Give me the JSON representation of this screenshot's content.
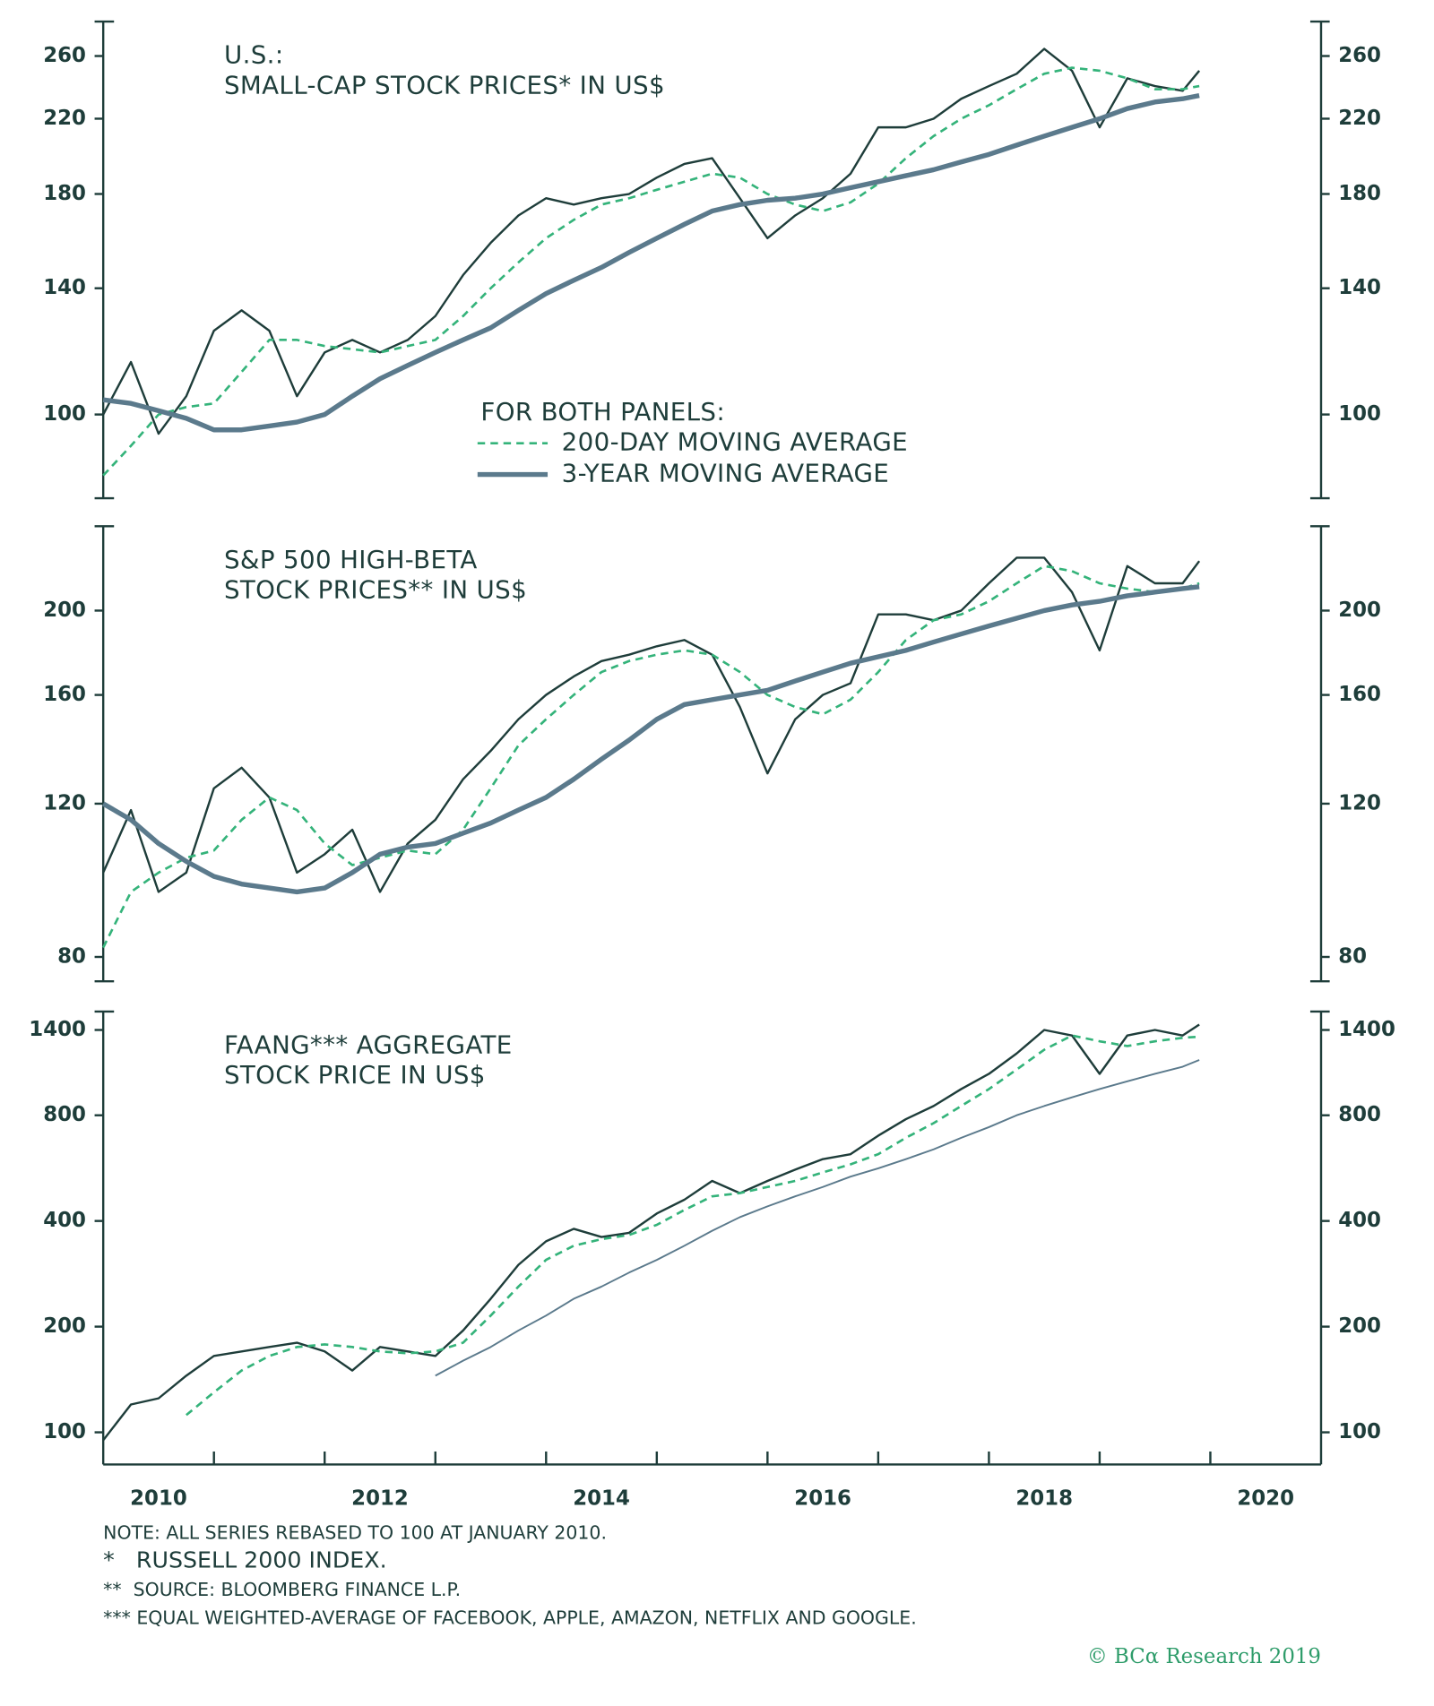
{
  "chart_data": [
    {
      "type": "line",
      "title": [
        "U.S.:",
        "SMALL-CAP STOCK PRICES* IN US$"
      ],
      "ylog": true,
      "ylim": [
        80,
        285
      ],
      "yticks": [
        100,
        140,
        180,
        220,
        260
      ],
      "legend_title": "FOR BOTH PANELS:",
      "x": [
        2010,
        2010.25,
        2010.5,
        2010.75,
        2011,
        2011.25,
        2011.5,
        2011.75,
        2012,
        2012.25,
        2012.5,
        2012.75,
        2013,
        2013.25,
        2013.5,
        2013.75,
        2014,
        2014.25,
        2014.5,
        2014.75,
        2015,
        2015.25,
        2015.5,
        2015.75,
        2016,
        2016.25,
        2016.5,
        2016.75,
        2017,
        2017.25,
        2017.5,
        2017.75,
        2018,
        2018.25,
        2018.5,
        2018.75,
        2019,
        2019.25,
        2019.5,
        2019.75,
        2019.9
      ],
      "series": [
        {
          "color": "#1e3d3a",
          "values": [
            100,
            115,
            95,
            105,
            125,
            132,
            125,
            105,
            118,
            122,
            118,
            122,
            130,
            145,
            158,
            170,
            178,
            175,
            178,
            180,
            188,
            195,
            198,
            178,
            160,
            170,
            178,
            190,
            215,
            215,
            220,
            232,
            240,
            248,
            265,
            250,
            215,
            245,
            240,
            237,
            250
          ]
        },
        {
          "name": "200-DAY MOVING AVERAGE",
          "color": "#34b37a",
          "values": [
            85,
            92,
            100,
            102,
            103,
            112,
            122,
            122,
            120,
            119,
            118,
            120,
            122,
            130,
            140,
            150,
            160,
            168,
            175,
            178,
            182,
            186,
            190,
            188,
            180,
            175,
            172,
            176,
            185,
            198,
            210,
            220,
            228,
            238,
            248,
            252,
            250,
            245,
            238,
            238,
            240
          ]
        },
        {
          "name": "3-YEAR MOVING AVERAGE",
          "color": "#5b7a8c",
          "values": [
            104,
            103,
            101,
            99,
            96,
            96,
            97,
            98,
            100,
            105,
            110,
            114,
            118,
            122,
            126,
            132,
            138,
            143,
            148,
            154,
            160,
            166,
            172,
            175,
            177,
            178,
            180,
            183,
            186,
            189,
            192,
            196,
            200,
            205,
            210,
            215,
            220,
            226,
            230,
            232,
            234
          ]
        }
      ]
    },
    {
      "type": "line",
      "title": [
        "S&P 500 HIGH-BETA",
        "STOCK PRICES** IN US$"
      ],
      "ylog": true,
      "ylim": [
        75,
        250
      ],
      "yticks": [
        80,
        120,
        160,
        200
      ],
      "x": [
        2010,
        2010.25,
        2010.5,
        2010.75,
        2011,
        2011.25,
        2011.5,
        2011.75,
        2012,
        2012.25,
        2012.5,
        2012.75,
        2013,
        2013.25,
        2013.5,
        2013.75,
        2014,
        2014.25,
        2014.5,
        2014.75,
        2015,
        2015.25,
        2015.5,
        2015.75,
        2016,
        2016.25,
        2016.5,
        2016.75,
        2017,
        2017.25,
        2017.5,
        2017.75,
        2018,
        2018.25,
        2018.5,
        2018.75,
        2019,
        2019.25,
        2019.5,
        2019.75,
        2019.9
      ],
      "series": [
        {
          "color": "#1e3d3a",
          "values": [
            100,
            118,
            95,
            100,
            125,
            132,
            122,
            100,
            105,
            112,
            95,
            108,
            115,
            128,
            138,
            150,
            160,
            168,
            175,
            178,
            182,
            185,
            178,
            155,
            130,
            150,
            160,
            165,
            198,
            198,
            195,
            200,
            215,
            230,
            230,
            210,
            180,
            225,
            215,
            215,
            228
          ]
        },
        {
          "color": "#34b37a",
          "values": [
            82,
            95,
            100,
            104,
            106,
            115,
            122,
            118,
            108,
            102,
            104,
            106,
            105,
            112,
            125,
            140,
            150,
            160,
            170,
            175,
            178,
            180,
            178,
            170,
            160,
            155,
            152,
            158,
            170,
            185,
            195,
            198,
            205,
            215,
            225,
            222,
            215,
            212,
            210,
            212,
            215
          ]
        },
        {
          "color": "#5b7a8c",
          "values": [
            120,
            115,
            108,
            103,
            99,
            97,
            96,
            95,
            96,
            100,
            105,
            107,
            108,
            111,
            114,
            118,
            122,
            128,
            135,
            142,
            150,
            156,
            158,
            160,
            162,
            166,
            170,
            174,
            177,
            180,
            184,
            188,
            192,
            196,
            200,
            203,
            205,
            208,
            210,
            212,
            213
          ]
        }
      ]
    },
    {
      "type": "line",
      "title": [
        "FAANG*** AGGREGATE",
        "STOCK PRICE IN US$"
      ],
      "ylog": true,
      "ylim": [
        81,
        1580
      ],
      "yticks": [
        100,
        200,
        400,
        800,
        1400
      ],
      "x": [
        2010,
        2010.25,
        2010.5,
        2010.75,
        2011,
        2011.25,
        2011.5,
        2011.75,
        2012,
        2012.25,
        2012.5,
        2012.75,
        2013,
        2013.25,
        2013.5,
        2013.75,
        2014,
        2014.25,
        2014.5,
        2014.75,
        2015,
        2015.25,
        2015.5,
        2015.75,
        2016,
        2016.25,
        2016.5,
        2016.75,
        2017,
        2017.25,
        2017.5,
        2017.75,
        2018,
        2018.25,
        2018.5,
        2018.75,
        2019,
        2019.25,
        2019.5,
        2019.75,
        2019.9
      ],
      "xlim": [
        2010,
        2021
      ],
      "xticks": [
        {
          "value": 2010.5,
          "label": "2010"
        },
        {
          "value": 2012.5,
          "label": "2012"
        },
        {
          "value": 2014.5,
          "label": "2014"
        },
        {
          "value": 2016.5,
          "label": "2016"
        },
        {
          "value": 2018.5,
          "label": "2018"
        },
        {
          "value": 2020.5,
          "label": "2020"
        }
      ],
      "x_tick_marks": [
        2011,
        2012,
        2013,
        2014,
        2015,
        2016,
        2017,
        2018,
        2019,
        2020
      ],
      "series": [
        {
          "color": "#1e3d3a",
          "values": [
            95,
            120,
            125,
            145,
            165,
            170,
            175,
            180,
            170,
            150,
            175,
            170,
            165,
            195,
            240,
            300,
            350,
            380,
            360,
            370,
            420,
            460,
            520,
            480,
            520,
            560,
            600,
            620,
            700,
            780,
            850,
            950,
            1050,
            1200,
            1400,
            1350,
            1050,
            1350,
            1400,
            1350,
            1450
          ]
        },
        {
          "color": "#34b37a",
          "values": [
            null,
            null,
            null,
            112,
            130,
            150,
            165,
            175,
            178,
            175,
            170,
            168,
            170,
            180,
            215,
            260,
            310,
            340,
            355,
            365,
            390,
            430,
            470,
            480,
            500,
            520,
            550,
            580,
            620,
            690,
            760,
            850,
            950,
            1080,
            1230,
            1350,
            1300,
            1260,
            1300,
            1330,
            1340
          ]
        },
        {
          "color": "#5b7a8c",
          "values": [
            null,
            null,
            null,
            null,
            null,
            null,
            null,
            null,
            null,
            null,
            null,
            null,
            145,
            160,
            175,
            195,
            215,
            240,
            260,
            285,
            310,
            340,
            375,
            410,
            440,
            470,
            500,
            535,
            565,
            600,
            640,
            690,
            740,
            800,
            850,
            900,
            950,
            1000,
            1050,
            1100,
            1150
          ]
        }
      ]
    }
  ],
  "notes": [
    "NOTE: ALL SERIES REBASED TO 100 AT JANUARY 2010.",
    "*   RUSSELL 2000 INDEX.",
    "**  SOURCE: BLOOMBERG FINANCE L.P.",
    "*** EQUAL WEIGHTED-AVERAGE OF FACEBOOK, APPLE, AMAZON, NETFLIX AND GOOGLE."
  ],
  "credit": "© BCα Research 2019"
}
